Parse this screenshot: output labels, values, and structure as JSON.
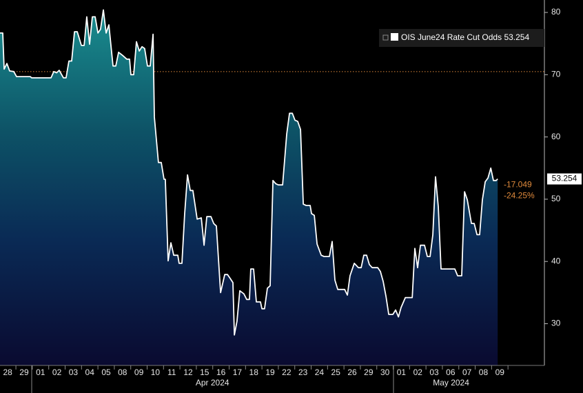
{
  "chart_data": {
    "type": "area",
    "series": [
      {
        "name": "OIS June24 Rate Cut Odds",
        "color": "#ffffff",
        "values": [
          76.7,
          76.7,
          70.9,
          71.8,
          70.6,
          70.5,
          69.7,
          69.7,
          69.5,
          69.5,
          70.5,
          70.3,
          70.7,
          69.5,
          69.5,
          72.2,
          72.2,
          76.9,
          76.9,
          74.7,
          74.7,
          79.3,
          74.9,
          79.3,
          79.3,
          76.7,
          77.3,
          80.4,
          76.7,
          78.0,
          71.4,
          71.4,
          73.6,
          73.1,
          72.5,
          72.5,
          70.0,
          70.0,
          75.3,
          73.8,
          74.5,
          74.2,
          71.4,
          71.4,
          76.5,
          63.2,
          55.9,
          55.9,
          53.2,
          53.2,
          40.1,
          43.0,
          41.0,
          41.0,
          39.7,
          39.7,
          47.7,
          53.9,
          51.4,
          51.4,
          46.8,
          47.0,
          42.6,
          47.2,
          47.2,
          46.1,
          45.7,
          35.0,
          37.9,
          37.9,
          37.3,
          36.6,
          28.2,
          30.4,
          35.3,
          34.8,
          33.9,
          33.9,
          38.8,
          38.8,
          33.5,
          33.5,
          32.4,
          32.4,
          35.7,
          36.1,
          53.0,
          52.5,
          52.3,
          52.3,
          60.5,
          63.8,
          63.8,
          62.7,
          62.5,
          61.2,
          49.2,
          49.0,
          49.0,
          47.7,
          47.4,
          42.8,
          41.0,
          40.8,
          40.8,
          43.2,
          37.0,
          35.5,
          35.5,
          34.6,
          37.7,
          39.7,
          39.0,
          39.0,
          41.0,
          41.0,
          39.5,
          39.0,
          39.0,
          38.4,
          36.8,
          34.4,
          31.5,
          31.5,
          32.2,
          31.1,
          32.6,
          34.2,
          34.2,
          42.1,
          39.0,
          42.6,
          42.6,
          40.8,
          40.8,
          44.3,
          53.6,
          48.8,
          38.8,
          38.8,
          37.7,
          37.7,
          51.2,
          49.9,
          46.1,
          46.1,
          44.3,
          44.3,
          49.9,
          52.8,
          53.4,
          55.0,
          53.0,
          53.0,
          53.254
        ]
      }
    ],
    "x": [
      0,
      0.17,
      0.25,
      0.42,
      0.59,
      0.84,
      1.01,
      1.85,
      1.93,
      3.11,
      3.28,
      3.45,
      3.61,
      3.87,
      4.03,
      4.2,
      4.37,
      4.54,
      4.71,
      4.96,
      5.13,
      5.29,
      5.46,
      5.63,
      5.8,
      5.97,
      6.13,
      6.3,
      6.47,
      6.64,
      6.89,
      7.06,
      7.23,
      7.48,
      7.73,
      7.9,
      7.98,
      8.15,
      8.32,
      8.49,
      8.66,
      8.82,
      8.99,
      9.16,
      9.33,
      9.41,
      9.66,
      9.83,
      10.0,
      10.08,
      10.25,
      10.42,
      10.59,
      10.84,
      10.92,
      11.09,
      11.26,
      11.43,
      11.6,
      11.76,
      12.02,
      12.27,
      12.44,
      12.61,
      12.86,
      13.03,
      13.19,
      13.45,
      13.7,
      13.87,
      14.03,
      14.2,
      14.29,
      14.45,
      14.62,
      14.87,
      15.04,
      15.21,
      15.29,
      15.46,
      15.63,
      15.88,
      15.97,
      16.13,
      16.3,
      16.47,
      16.64,
      16.81,
      16.97,
      17.23,
      17.48,
      17.65,
      17.82,
      17.98,
      18.15,
      18.32,
      18.49,
      18.66,
      18.91,
      18.99,
      19.16,
      19.33,
      19.58,
      19.75,
      20.08,
      20.25,
      20.42,
      20.59,
      21.01,
      21.18,
      21.34,
      21.6,
      21.85,
      22.02,
      22.18,
      22.35,
      22.52,
      22.69,
      23.03,
      23.19,
      23.36,
      23.53,
      23.7,
      23.95,
      24.12,
      24.29,
      24.45,
      24.71,
      25.13,
      25.29,
      25.46,
      25.63,
      25.88,
      26.05,
      26.22,
      26.39,
      26.55,
      26.72,
      26.89,
      27.73,
      27.9,
      28.15,
      28.32,
      28.49,
      28.74,
      28.91,
      29.08,
      29.24,
      29.41,
      29.58,
      29.75,
      29.92,
      30.08,
      30.25,
      30.34
    ],
    "xlim": [
      0,
      33.19
    ],
    "xticks": [
      {
        "value": 0.47,
        "label": "28"
      },
      {
        "value": 1.47,
        "label": "29"
      },
      {
        "value": 2.47,
        "label": "01"
      },
      {
        "value": 3.47,
        "label": "02"
      },
      {
        "value": 4.47,
        "label": "03"
      },
      {
        "value": 5.47,
        "label": "04"
      },
      {
        "value": 6.47,
        "label": "05"
      },
      {
        "value": 7.47,
        "label": "08"
      },
      {
        "value": 8.47,
        "label": "09"
      },
      {
        "value": 9.47,
        "label": "10"
      },
      {
        "value": 10.47,
        "label": "11"
      },
      {
        "value": 11.47,
        "label": "12"
      },
      {
        "value": 12.47,
        "label": "15"
      },
      {
        "value": 13.47,
        "label": "16"
      },
      {
        "value": 14.47,
        "label": "17"
      },
      {
        "value": 15.47,
        "label": "18"
      },
      {
        "value": 16.47,
        "label": "19"
      },
      {
        "value": 17.47,
        "label": "22"
      },
      {
        "value": 18.47,
        "label": "23"
      },
      {
        "value": 19.47,
        "label": "24"
      },
      {
        "value": 20.47,
        "label": "25"
      },
      {
        "value": 21.47,
        "label": "26"
      },
      {
        "value": 22.47,
        "label": "29"
      },
      {
        "value": 23.47,
        "label": "30"
      },
      {
        "value": 24.47,
        "label": "01"
      },
      {
        "value": 25.47,
        "label": "02"
      },
      {
        "value": 26.47,
        "label": "03"
      },
      {
        "value": 27.47,
        "label": "06"
      },
      {
        "value": 28.47,
        "label": "07"
      },
      {
        "value": 29.47,
        "label": "08"
      },
      {
        "value": 30.47,
        "label": "09"
      }
    ],
    "x_group_labels": [
      {
        "value": 12.95,
        "label": "Apr 2024"
      },
      {
        "value": 27.5,
        "label": "May 2024"
      }
    ],
    "ylim": [
      23.3,
      82
    ],
    "yticks": [
      30,
      40,
      50,
      60,
      70,
      80
    ],
    "reference_line": 70.5,
    "reference_color": "#e08a3c",
    "change": -17.049,
    "change_pct": {
      "value": -24.25,
      "label": "-24.25%"
    },
    "legend_position": "top-right"
  }
}
